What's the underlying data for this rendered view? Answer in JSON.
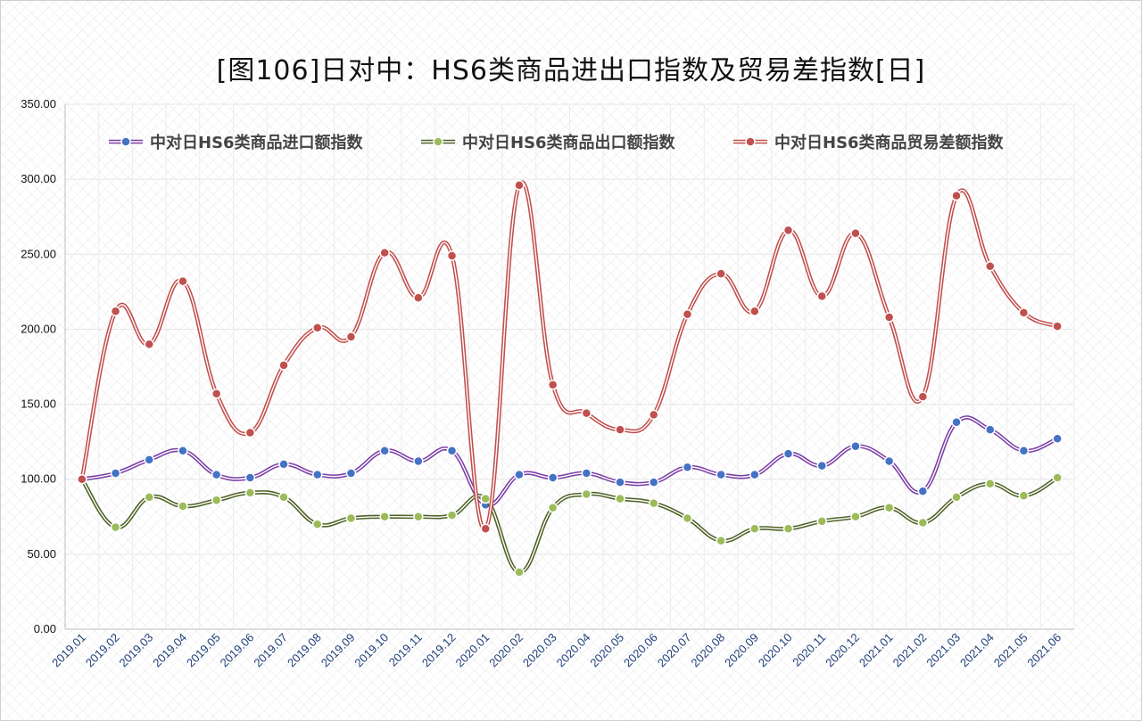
{
  "chart_data": {
    "type": "line",
    "title": "[图106]日对中：HS6类商品进出口指数及贸易差指数[日]",
    "xlabel": "",
    "ylabel": "",
    "ylim": [
      0,
      350
    ],
    "yticks": [
      "0.00",
      "50.00",
      "100.00",
      "150.00",
      "200.00",
      "250.00",
      "300.00",
      "350.00"
    ],
    "grid": true,
    "legend_position": "top",
    "categories": [
      "2019.01",
      "2019.02",
      "2019.03",
      "2019.04",
      "2019.05",
      "2019.06",
      "2019.07",
      "2019.08",
      "2019.09",
      "2019.10",
      "2019.11",
      "2019.12",
      "2020.01",
      "2020.02",
      "2020.03",
      "2020.04",
      "2020.05",
      "2020.06",
      "2020.07",
      "2020.08",
      "2020.09",
      "2020.10",
      "2020.11",
      "2020.12",
      "2021.01",
      "2021.02",
      "2021.03",
      "2021.04",
      "2021.05",
      "2021.06"
    ],
    "series": [
      {
        "name": "中对日HS6类商品进口额指数",
        "color": "#7b3fa6",
        "marker_color": "#4472c4",
        "values": [
          100,
          104,
          113,
          119,
          103,
          101,
          110,
          103,
          104,
          119,
          112,
          119,
          83,
          103,
          101,
          104,
          98,
          98,
          108,
          103,
          103,
          117,
          109,
          122,
          112,
          92,
          138,
          133,
          119,
          127
        ]
      },
      {
        "name": "中对日HS6类商品出口额指数",
        "color": "#4f6228",
        "marker_color": "#9bbb59",
        "values": [
          100,
          68,
          88,
          82,
          86,
          91,
          88,
          70,
          74,
          75,
          75,
          76,
          87,
          38,
          81,
          90,
          87,
          84,
          74,
          59,
          67,
          67,
          72,
          75,
          81,
          71,
          88,
          97,
          89,
          101
        ]
      },
      {
        "name": "中对日HS6类商品贸易差额指数",
        "color": "#c0504d",
        "marker_color": "#c0504d",
        "values": [
          100,
          212,
          190,
          232,
          157,
          131,
          176,
          201,
          195,
          251,
          221,
          249,
          67,
          296,
          163,
          144,
          133,
          143,
          210,
          237,
          212,
          266,
          222,
          264,
          208,
          155,
          289,
          242,
          211,
          202
        ]
      }
    ]
  }
}
